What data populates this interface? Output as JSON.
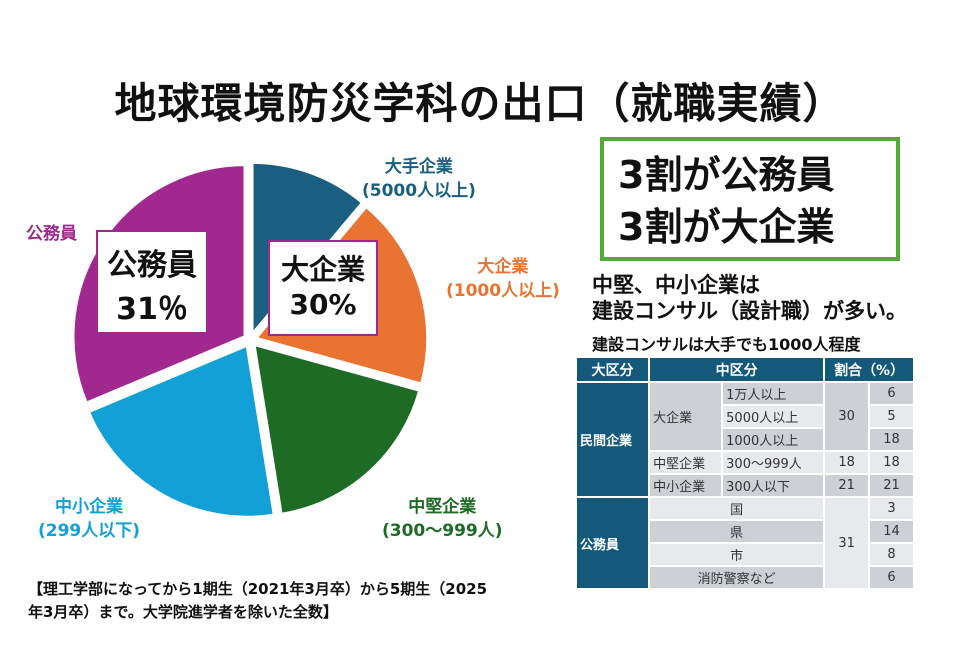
{
  "title": "地球環境防災学科の出口（就職実績）",
  "summary": [
    "3割が公務員",
    "3割が大企業"
  ],
  "notes": [
    "中堅、中小企業は",
    "建設コンサル（設計職）が多い。",
    "建設コンサルは大手でも1000人程度"
  ],
  "callouts": {
    "koumuin": {
      "label": "公務員",
      "value": "31％"
    },
    "daikigyo": {
      "label": "大企業",
      "value": "30%"
    }
  },
  "footnote": [
    "【理工学部になってから1期生（2021年3月卒）から5期生（2025",
    "年3月卒）まで。大学院進学者を除いた全数】"
  ],
  "chart_data": {
    "type": "pie",
    "start": "top",
    "direction": "clockwise",
    "slices": [
      {
        "name": "大手企業",
        "sub": "(5000人以上)",
        "value": 11,
        "color": "#1a5e80"
      },
      {
        "name": "大企業",
        "sub": "(1000人以上)",
        "value": 18,
        "color": "#e97432"
      },
      {
        "name": "中堅企業",
        "sub": "(300〜999人)",
        "value": 18,
        "color": "#1e6b25"
      },
      {
        "name": "中小企業",
        "sub": "(299人以下)",
        "value": 21,
        "color": "#12a0d6"
      },
      {
        "name": "公務員",
        "sub": "",
        "value": 31,
        "color": "#a0288e"
      }
    ]
  },
  "table": {
    "headers": [
      "大区分",
      "中区分",
      "割合（%）"
    ],
    "private": "民間企業",
    "large": "大企業",
    "large_rows": [
      [
        "1万人以上",
        "6"
      ],
      [
        "5000人以上",
        "5"
      ],
      [
        "1000人以上",
        "18"
      ]
    ],
    "large_total": "30",
    "mid": [
      "中堅企業",
      "300〜999人",
      "18",
      "18"
    ],
    "small": [
      "中小企業",
      "300人以下",
      "21",
      "21"
    ],
    "public": "公務員",
    "public_total": "31",
    "public_rows": [
      [
        "国",
        "3"
      ],
      [
        "県",
        "14"
      ],
      [
        "市",
        "8"
      ],
      [
        "消防警察など",
        "6"
      ]
    ]
  }
}
